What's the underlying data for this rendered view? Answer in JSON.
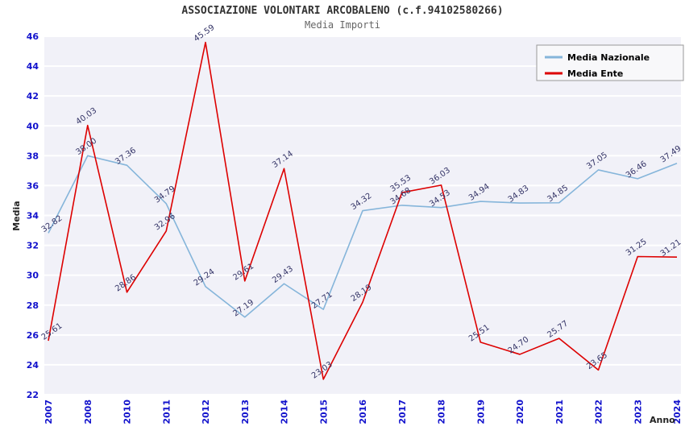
{
  "chart_data": {
    "type": "line",
    "title": "ASSOCIAZIONE VOLONTARI ARCOBALENO (c.f.94102580266)",
    "subtitle": "Media Importi",
    "xlabel": "Anno",
    "ylabel": "Media",
    "ylim": [
      22,
      46
    ],
    "ytick_step": 2,
    "grid": true,
    "legend_position": "top-right",
    "categories": [
      "2007",
      "2008",
      "2010",
      "2011",
      "2012",
      "2013",
      "2014",
      "2015",
      "2016",
      "2017",
      "2018",
      "2019",
      "2020",
      "2021",
      "2022",
      "2023",
      "2024"
    ],
    "series": [
      {
        "name": "Media Nazionale",
        "color": "#85b5da",
        "values": [
          32.82,
          38.0,
          37.36,
          34.79,
          29.24,
          27.19,
          29.43,
          27.71,
          34.32,
          34.68,
          34.53,
          34.94,
          34.83,
          34.85,
          37.05,
          36.46,
          37.49
        ]
      },
      {
        "name": "Media Ente",
        "color": "#dd0000",
        "values": [
          25.61,
          40.03,
          28.86,
          32.96,
          45.59,
          29.61,
          37.14,
          23.03,
          28.19,
          35.53,
          36.03,
          25.51,
          24.7,
          25.77,
          23.65,
          31.25,
          31.21
        ]
      }
    ],
    "colors": {
      "tick_label": "#1111cc",
      "value_label": "#333366",
      "plot_bg": "#f1f1f8",
      "grid": "#ffffff",
      "title": "#333333",
      "subtitle": "#666666"
    }
  }
}
